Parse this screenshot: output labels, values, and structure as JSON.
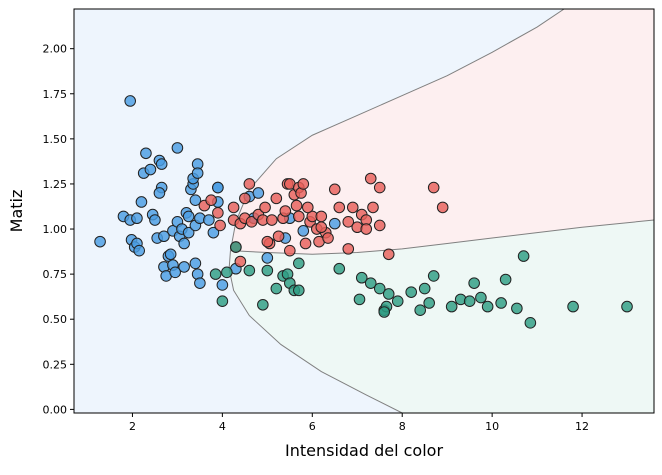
{
  "chart_data": {
    "type": "scatter",
    "xlabel": "Intensidad del color",
    "ylabel": "Matiz",
    "xlim": [
      0.7,
      13.6
    ],
    "ylim": [
      -0.02,
      2.22
    ],
    "xticks": [
      2,
      4,
      6,
      8,
      10,
      12
    ],
    "xtick_labels": [
      "2",
      "4",
      "6",
      "8",
      "10",
      "12"
    ],
    "yticks": [
      0.0,
      0.25,
      0.5,
      0.75,
      1.0,
      1.25,
      1.5,
      1.75,
      2.0
    ],
    "ytick_labels": [
      "0.00",
      "0.25",
      "0.50",
      "0.75",
      "1.00",
      "1.25",
      "1.50",
      "1.75",
      "2.00"
    ],
    "grid": false,
    "legend": "none",
    "regions": [
      {
        "class": "class_0",
        "color": "#eef5fd"
      },
      {
        "class": "class_1",
        "color": "#fdeff0"
      },
      {
        "class": "class_2",
        "color": "#eef8f5"
      }
    ],
    "decision_boundaries": [
      {
        "between": [
          "class_0",
          "class_1"
        ],
        "points": [
          [
            4.18,
            0.88
          ],
          [
            4.3,
            1.04
          ],
          [
            4.6,
            1.22
          ],
          [
            5.2,
            1.39
          ],
          [
            6.0,
            1.52
          ],
          [
            7.0,
            1.63
          ],
          [
            8.0,
            1.74
          ],
          [
            9.0,
            1.85
          ],
          [
            10.0,
            1.98
          ],
          [
            11.0,
            2.12
          ],
          [
            11.6,
            2.22
          ]
        ]
      },
      {
        "between": [
          "class_0",
          "class_2"
        ],
        "points": [
          [
            4.18,
            0.88
          ],
          [
            4.15,
            0.78
          ],
          [
            4.25,
            0.66
          ],
          [
            4.6,
            0.52
          ],
          [
            5.3,
            0.36
          ],
          [
            6.2,
            0.21
          ],
          [
            7.2,
            0.08
          ],
          [
            8.0,
            -0.02
          ]
        ]
      },
      {
        "between": [
          "class_1",
          "class_2"
        ],
        "points": [
          [
            4.18,
            0.88
          ],
          [
            5.0,
            0.87
          ],
          [
            6.0,
            0.86
          ],
          [
            7.0,
            0.87
          ],
          [
            8.0,
            0.89
          ],
          [
            9.0,
            0.92
          ],
          [
            10.0,
            0.95
          ],
          [
            11.0,
            0.98
          ],
          [
            12.0,
            1.01
          ],
          [
            13.6,
            1.05
          ]
        ]
      }
    ],
    "series": [
      {
        "class": "class_0",
        "color": "#4a9ee3",
        "points": [
          [
            1.28,
            0.93
          ],
          [
            1.95,
            1.71
          ],
          [
            1.8,
            1.07
          ],
          [
            1.95,
            1.05
          ],
          [
            1.98,
            0.94
          ],
          [
            2.05,
            0.9
          ],
          [
            2.1,
            0.92
          ],
          [
            2.15,
            0.88
          ],
          [
            2.1,
            1.06
          ],
          [
            2.2,
            1.15
          ],
          [
            2.25,
            1.31
          ],
          [
            2.3,
            1.42
          ],
          [
            2.4,
            1.33
          ],
          [
            2.45,
            1.08
          ],
          [
            2.5,
            1.05
          ],
          [
            2.55,
            0.95
          ],
          [
            2.6,
            1.38
          ],
          [
            2.65,
            1.36
          ],
          [
            2.65,
            1.23
          ],
          [
            2.6,
            1.2
          ],
          [
            2.7,
            0.96
          ],
          [
            2.7,
            0.79
          ],
          [
            2.75,
            0.74
          ],
          [
            2.8,
            0.85
          ],
          [
            2.85,
            0.86
          ],
          [
            2.9,
            0.99
          ],
          [
            2.9,
            0.8
          ],
          [
            2.95,
            0.76
          ],
          [
            3.0,
            1.45
          ],
          [
            3.0,
            1.04
          ],
          [
            3.05,
            0.96
          ],
          [
            3.1,
            1.0
          ],
          [
            3.15,
            0.92
          ],
          [
            3.15,
            0.79
          ],
          [
            3.2,
            1.09
          ],
          [
            3.25,
            1.07
          ],
          [
            3.25,
            0.98
          ],
          [
            3.3,
            1.22
          ],
          [
            3.35,
            1.25
          ],
          [
            3.35,
            1.28
          ],
          [
            3.4,
            1.16
          ],
          [
            3.4,
            1.02
          ],
          [
            3.45,
            1.36
          ],
          [
            3.45,
            1.31
          ],
          [
            3.5,
            1.06
          ],
          [
            3.4,
            0.81
          ],
          [
            3.45,
            0.75
          ],
          [
            3.5,
            0.7
          ],
          [
            3.7,
            1.05
          ],
          [
            3.8,
            0.98
          ],
          [
            3.9,
            1.23
          ],
          [
            3.9,
            1.23
          ],
          [
            4.0,
            0.69
          ],
          [
            4.6,
            1.18
          ],
          [
            4.7,
            1.06
          ],
          [
            5.0,
            0.84
          ],
          [
            5.5,
            1.06
          ],
          [
            6.5,
            1.03
          ],
          [
            5.4,
            0.95
          ],
          [
            4.8,
            1.2
          ],
          [
            3.9,
            1.15
          ],
          [
            4.3,
            0.78
          ],
          [
            5.8,
            0.99
          ]
        ]
      },
      {
        "class": "class_1",
        "color": "#e8605a",
        "points": [
          [
            3.6,
            1.13
          ],
          [
            3.75,
            1.16
          ],
          [
            3.9,
            1.09
          ],
          [
            3.95,
            1.02
          ],
          [
            4.25,
            1.05
          ],
          [
            4.25,
            1.12
          ],
          [
            4.4,
            1.03
          ],
          [
            4.5,
            1.06
          ],
          [
            4.6,
            1.25
          ],
          [
            4.65,
            1.04
          ],
          [
            4.8,
            1.08
          ],
          [
            4.9,
            1.05
          ],
          [
            4.95,
            1.12
          ],
          [
            5.05,
            0.92
          ],
          [
            5.1,
            1.05
          ],
          [
            5.2,
            1.17
          ],
          [
            5.25,
            0.96
          ],
          [
            5.35,
            1.06
          ],
          [
            5.4,
            1.1
          ],
          [
            5.45,
            1.25
          ],
          [
            5.5,
            1.25
          ],
          [
            5.5,
            0.88
          ],
          [
            5.6,
            1.19
          ],
          [
            5.65,
            1.13
          ],
          [
            5.7,
            1.07
          ],
          [
            5.7,
            1.23
          ],
          [
            5.75,
            1.2
          ],
          [
            5.8,
            1.25
          ],
          [
            5.85,
            0.92
          ],
          [
            5.95,
            1.04
          ],
          [
            6.0,
            1.07
          ],
          [
            6.1,
            1.0
          ],
          [
            6.15,
            0.93
          ],
          [
            6.2,
            1.07
          ],
          [
            6.3,
            0.98
          ],
          [
            6.35,
            0.95
          ],
          [
            6.5,
            1.22
          ],
          [
            6.6,
            1.12
          ],
          [
            6.8,
            1.04
          ],
          [
            6.8,
            0.89
          ],
          [
            6.9,
            1.12
          ],
          [
            7.0,
            1.01
          ],
          [
            7.1,
            1.08
          ],
          [
            7.2,
            1.05
          ],
          [
            7.3,
            1.28
          ],
          [
            7.35,
            1.12
          ],
          [
            7.5,
            1.23
          ],
          [
            7.5,
            1.02
          ],
          [
            7.7,
            0.86
          ],
          [
            8.7,
            1.23
          ],
          [
            8.9,
            1.12
          ],
          [
            4.3,
            0.9
          ],
          [
            4.4,
            0.82
          ],
          [
            5.0,
            0.93
          ],
          [
            6.2,
            1.01
          ],
          [
            7.2,
            1.0
          ],
          [
            4.5,
            1.17
          ],
          [
            5.9,
            1.12
          ]
        ]
      },
      {
        "class": "class_2",
        "color": "#2e9e84",
        "points": [
          [
            3.85,
            0.75
          ],
          [
            4.0,
            0.6
          ],
          [
            4.1,
            0.76
          ],
          [
            4.3,
            0.9
          ],
          [
            4.6,
            0.77
          ],
          [
            4.9,
            0.58
          ],
          [
            5.0,
            0.77
          ],
          [
            5.2,
            0.67
          ],
          [
            5.35,
            0.74
          ],
          [
            5.45,
            0.75
          ],
          [
            5.5,
            0.7
          ],
          [
            5.6,
            0.66
          ],
          [
            5.7,
            0.81
          ],
          [
            5.7,
            0.66
          ],
          [
            6.6,
            0.78
          ],
          [
            7.05,
            0.61
          ],
          [
            7.1,
            0.73
          ],
          [
            7.3,
            0.7
          ],
          [
            7.5,
            0.67
          ],
          [
            7.6,
            0.55
          ],
          [
            7.65,
            0.57
          ],
          [
            7.7,
            0.64
          ],
          [
            7.9,
            0.6
          ],
          [
            8.2,
            0.65
          ],
          [
            8.4,
            0.55
          ],
          [
            8.5,
            0.67
          ],
          [
            8.6,
            0.59
          ],
          [
            8.7,
            0.74
          ],
          [
            9.1,
            0.57
          ],
          [
            9.3,
            0.61
          ],
          [
            9.5,
            0.6
          ],
          [
            9.6,
            0.7
          ],
          [
            9.75,
            0.62
          ],
          [
            9.9,
            0.57
          ],
          [
            10.2,
            0.59
          ],
          [
            10.3,
            0.72
          ],
          [
            10.55,
            0.56
          ],
          [
            10.7,
            0.85
          ],
          [
            10.85,
            0.48
          ],
          [
            11.8,
            0.57
          ],
          [
            13.0,
            0.57
          ],
          [
            7.6,
            0.54
          ]
        ]
      }
    ]
  }
}
